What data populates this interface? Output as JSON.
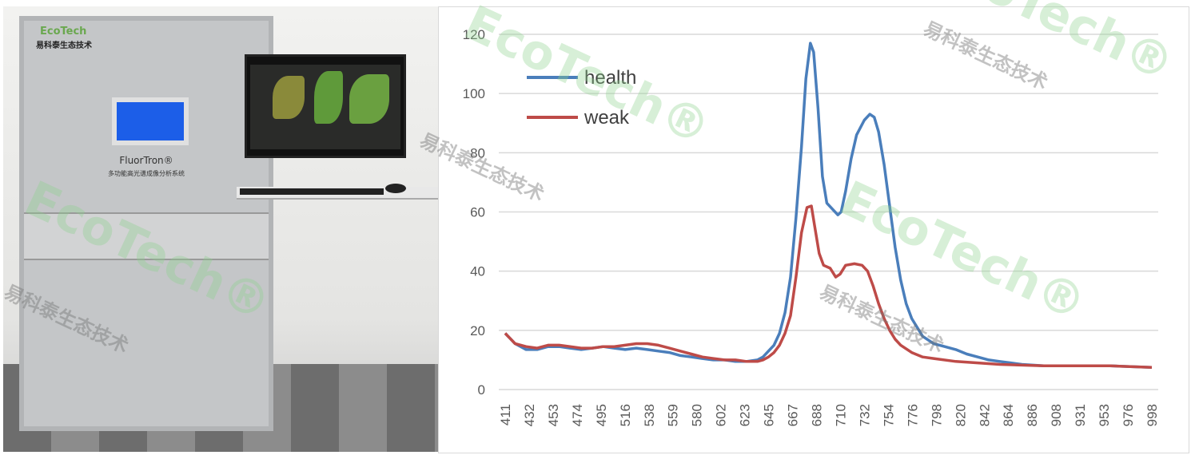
{
  "photo": {
    "device_logo": "EcoTech",
    "device_logo_cn": "易科泰生态技术",
    "device_brand": "FluorTron®",
    "device_subtitle": "多功能高光谱成像分析系统"
  },
  "watermark": {
    "logo": "EcoTech®",
    "text_cn": "易科泰生态技术"
  },
  "chart_data": {
    "type": "line",
    "title": "",
    "xlabel": "",
    "ylabel": "",
    "ylim": [
      0,
      120
    ],
    "yticks": [
      0,
      20,
      40,
      60,
      80,
      100,
      120
    ],
    "xlim": [
      411,
      998
    ],
    "xticks": [
      "411",
      "432",
      "453",
      "474",
      "495",
      "516",
      "538",
      "559",
      "580",
      "602",
      "623",
      "645",
      "667",
      "688",
      "710",
      "732",
      "754",
      "776",
      "798",
      "820",
      "842",
      "864",
      "886",
      "908",
      "931",
      "953",
      "976",
      "998"
    ],
    "grid": true,
    "legend": "top-left",
    "series": [
      {
        "name": "health",
        "color": "#4a7ebb",
        "x": [
          411,
          420,
          430,
          440,
          450,
          460,
          470,
          480,
          490,
          500,
          510,
          520,
          530,
          540,
          550,
          560,
          570,
          580,
          590,
          600,
          610,
          620,
          630,
          640,
          645,
          650,
          655,
          660,
          665,
          670,
          675,
          680,
          684,
          688,
          691,
          695,
          699,
          703,
          708,
          713,
          716,
          720,
          725,
          730,
          737,
          742,
          746,
          750,
          755,
          760,
          765,
          770,
          775,
          780,
          790,
          800,
          810,
          820,
          830,
          840,
          850,
          860,
          870,
          880,
          900,
          930,
          960,
          998
        ],
        "y": [
          19,
          15.5,
          13.5,
          13.5,
          14.5,
          14.5,
          14,
          13.5,
          14,
          14.5,
          14,
          13.5,
          14,
          13.5,
          13,
          12.5,
          11.5,
          11,
          10.5,
          10,
          10,
          9.5,
          9.5,
          10,
          11,
          13,
          15,
          19,
          26,
          38,
          58,
          82,
          105,
          117,
          114,
          95,
          72,
          63,
          61,
          59,
          60,
          67,
          78,
          86,
          91,
          93,
          92,
          87,
          76,
          62,
          48,
          37,
          29,
          24,
          18,
          15.5,
          14.5,
          13.5,
          12,
          11,
          10,
          9.5,
          9,
          8.5,
          8,
          8,
          8,
          7.5
        ]
      },
      {
        "name": "weak",
        "color": "#be4b48",
        "x": [
          411,
          420,
          430,
          440,
          450,
          460,
          470,
          480,
          490,
          500,
          510,
          520,
          530,
          540,
          550,
          560,
          570,
          580,
          590,
          600,
          610,
          620,
          630,
          640,
          645,
          650,
          655,
          660,
          665,
          670,
          675,
          680,
          685,
          689,
          692,
          696,
          700,
          706,
          711,
          715,
          720,
          728,
          735,
          740,
          745,
          750,
          755,
          760,
          765,
          770,
          780,
          790,
          800,
          820,
          840,
          860,
          900,
          930,
          960,
          998
        ],
        "y": [
          19,
          15.5,
          14.5,
          14,
          15,
          15,
          14.5,
          14,
          14,
          14.5,
          14.5,
          15,
          15.5,
          15.5,
          15,
          14,
          13,
          12,
          11,
          10.5,
          10,
          10,
          9.5,
          9.5,
          10,
          11,
          12.5,
          15,
          19,
          25,
          38,
          53,
          61.5,
          62,
          55,
          46,
          42,
          41,
          38,
          39,
          42,
          42.5,
          42,
          40,
          35,
          29,
          24,
          20,
          17,
          15,
          12.5,
          11,
          10.5,
          9.5,
          9,
          8.5,
          8,
          8,
          8,
          7.5
        ]
      }
    ]
  }
}
